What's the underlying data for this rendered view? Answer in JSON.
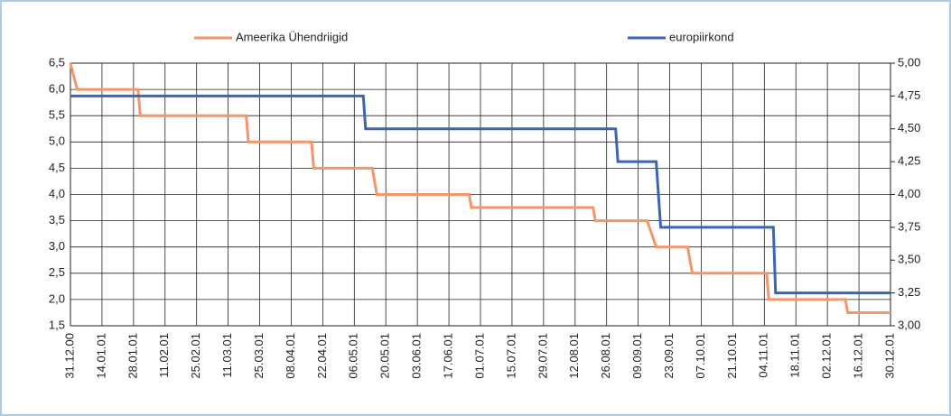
{
  "chart_data": {
    "type": "line",
    "legend": "top",
    "grid": true,
    "xlim": [
      "31.12.00",
      "30.12.01"
    ],
    "xticks": [
      "31.12.00",
      "14.01.01",
      "28.01.01",
      "11.02.01",
      "25.02.01",
      "11.03.01",
      "25.03.01",
      "08.04.01",
      "22.04.01",
      "06.05.01",
      "20.05.01",
      "03.06.01",
      "17.06.01",
      "01.07.01",
      "15.07.01",
      "29.07.01",
      "12.08.01",
      "26.08.01",
      "09.09.01",
      "23.09.01",
      "07.10.01",
      "21.10.01",
      "04.11.01",
      "18.11.01",
      "02.12.01",
      "16.12.01",
      "30.12.01"
    ],
    "ylim": [
      1.5,
      6.5
    ],
    "yticks": [
      {
        "value": 1.5,
        "label": "1,5"
      },
      {
        "value": 2.0,
        "label": "2,0"
      },
      {
        "value": 2.5,
        "label": "2,5"
      },
      {
        "value": 3.0,
        "label": "3,0"
      },
      {
        "value": 3.5,
        "label": "3,5"
      },
      {
        "value": 4.0,
        "label": "4,0"
      },
      {
        "value": 4.5,
        "label": "4,5"
      },
      {
        "value": 5.0,
        "label": "5,0"
      },
      {
        "value": 5.5,
        "label": "5,5"
      },
      {
        "value": 6.0,
        "label": "6,0"
      },
      {
        "value": 6.5,
        "label": "6,5"
      }
    ],
    "y2lim": [
      3.0,
      5.0
    ],
    "y2ticks": [
      {
        "value": 3.0,
        "label": "3,00"
      },
      {
        "value": 3.25,
        "label": "3,25"
      },
      {
        "value": 3.5,
        "label": "3,50"
      },
      {
        "value": 3.75,
        "label": "3,75"
      },
      {
        "value": 4.0,
        "label": "4,00"
      },
      {
        "value": 4.25,
        "label": "4,25"
      },
      {
        "value": 4.5,
        "label": "4,50"
      },
      {
        "value": 4.75,
        "label": "4,75"
      },
      {
        "value": 5.0,
        "label": "5,00"
      }
    ],
    "series": [
      {
        "name": "Ameerika Ühendriigid",
        "color": "#f4956a",
        "axis": "y",
        "x": [
          "31.12.00",
          "03.01.01",
          "30.01.01",
          "31.01.01",
          "19.03.01",
          "20.03.01",
          "17.04.01",
          "18.04.01",
          "14.05.01",
          "16.05.01",
          "26.06.01",
          "27.06.01",
          "20.08.01",
          "21.08.01",
          "13.09.01",
          "17.09.01",
          "01.10.01",
          "03.10.01",
          "05.11.01",
          "06.11.01",
          "10.12.01",
          "11.12.01",
          "30.12.01"
        ],
        "values": [
          6.5,
          6.0,
          6.0,
          5.5,
          5.5,
          5.0,
          5.0,
          4.5,
          4.5,
          4.0,
          4.0,
          3.75,
          3.75,
          3.5,
          3.5,
          3.0,
          3.0,
          2.5,
          2.5,
          2.0,
          2.0,
          1.75,
          1.75
        ]
      },
      {
        "name": "europiirkond",
        "color": "#3a66b0",
        "axis": "y2",
        "x": [
          "31.12.00",
          "10.05.01",
          "11.05.01",
          "30.08.01",
          "31.08.01",
          "17.09.01",
          "19.09.01",
          "08.11.01",
          "09.11.01",
          "30.12.01"
        ],
        "values": [
          4.75,
          4.75,
          4.5,
          4.5,
          4.25,
          4.25,
          3.75,
          3.75,
          3.25,
          3.25
        ]
      }
    ]
  }
}
